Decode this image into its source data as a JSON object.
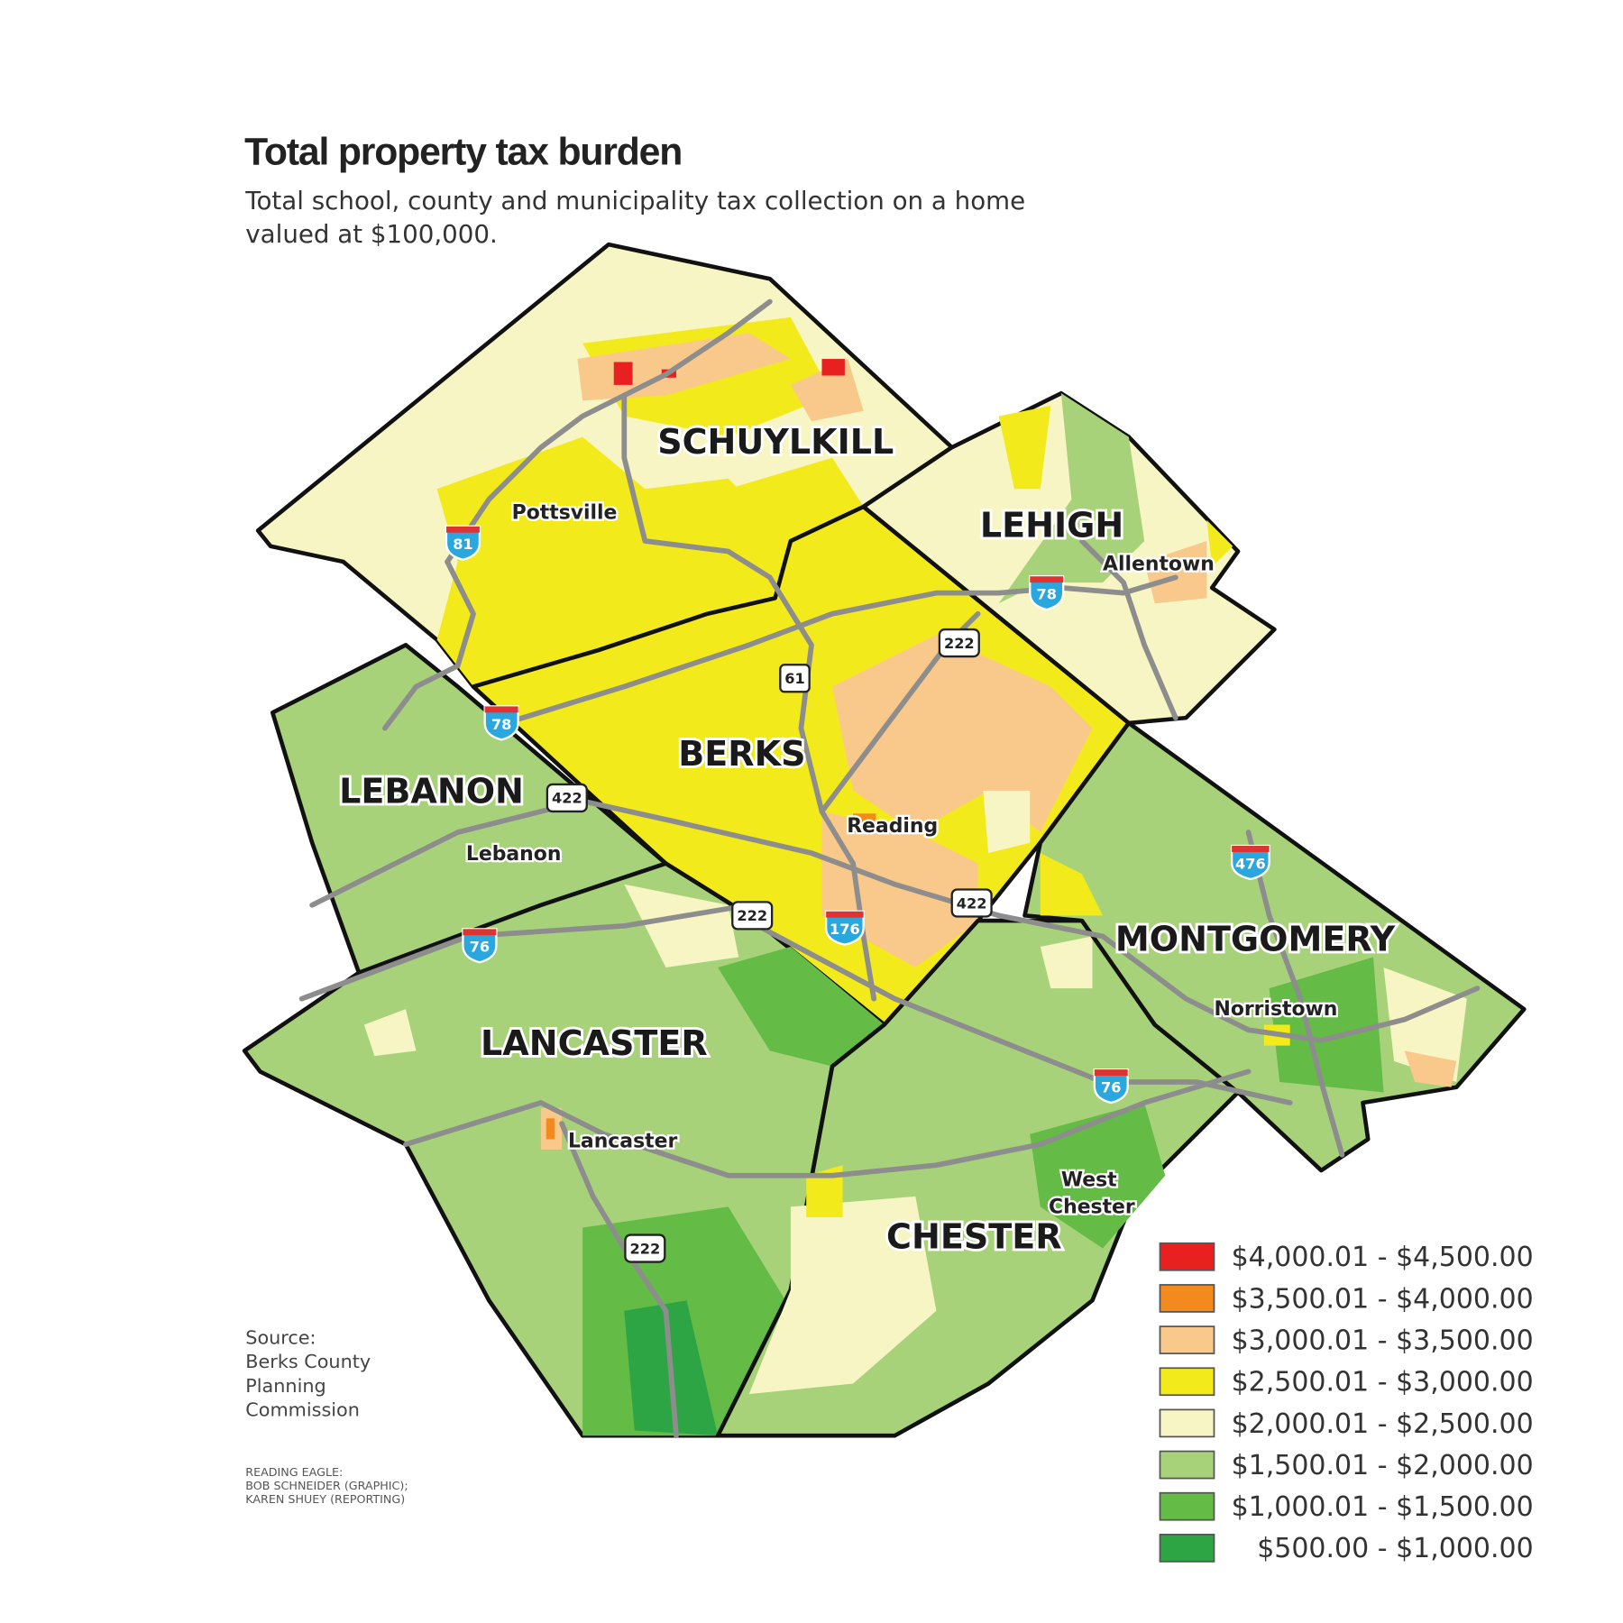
{
  "title": "Total property tax burden",
  "subtitle_line1": "Total school, county and municipality tax collection on a home",
  "subtitle_line2": "valued at $100,000.",
  "counties": {
    "schuylkill": "SCHUYLKILL",
    "lehigh": "LEHIGH",
    "berks": "BERKS",
    "lebanon": "LEBANON",
    "montgomery": "MONTGOMERY",
    "lancaster": "LANCASTER",
    "chester": "CHESTER"
  },
  "cities": {
    "pottsville": "Pottsville",
    "allentown": "Allentown",
    "reading": "Reading",
    "lebanon": "Lebanon",
    "norristown": "Norristown",
    "lancaster": "Lancaster",
    "west_chester_1": "West",
    "west_chester_2": "Chester"
  },
  "highways": {
    "i81": "81",
    "i78_lehigh": "78",
    "i78_berks": "78",
    "us222_berks": "222",
    "pa61": "61",
    "us422_lebanon": "422",
    "us422_berks": "422",
    "i476": "476",
    "us222_lancaster_n": "222",
    "i176": "176",
    "i76_lancaster": "76",
    "i76_chester": "76",
    "us222_lancaster_s": "222"
  },
  "legend": [
    {
      "label": "$4,000.01 - $4,500.00",
      "color": "#e8201f"
    },
    {
      "label": "$3,500.01 - $4,000.00",
      "color": "#f28a1e"
    },
    {
      "label": "$3,000.01 - $3,500.00",
      "color": "#f8c98a"
    },
    {
      "label": "$2,500.01 - $3,000.00",
      "color": "#f2ea1a"
    },
    {
      "label": "$2,000.01 - $2,500.00",
      "color": "#f8f5c4"
    },
    {
      "label": "$1,500.01 - $2,000.00",
      "color": "#a8d27a"
    },
    {
      "label": "$1,000.01 - $1,500.00",
      "color": "#64bb45"
    },
    {
      "label": "$500.00 - $1,000.00",
      "color": "#2ea544"
    }
  ],
  "source": [
    "Source:",
    "Berks County",
    "Planning",
    "Commission"
  ],
  "credits": [
    "READING EAGLE:",
    "BOB SCHNEIDER (GRAPHIC);",
    "KAREN SHUEY (REPORTING)"
  ]
}
